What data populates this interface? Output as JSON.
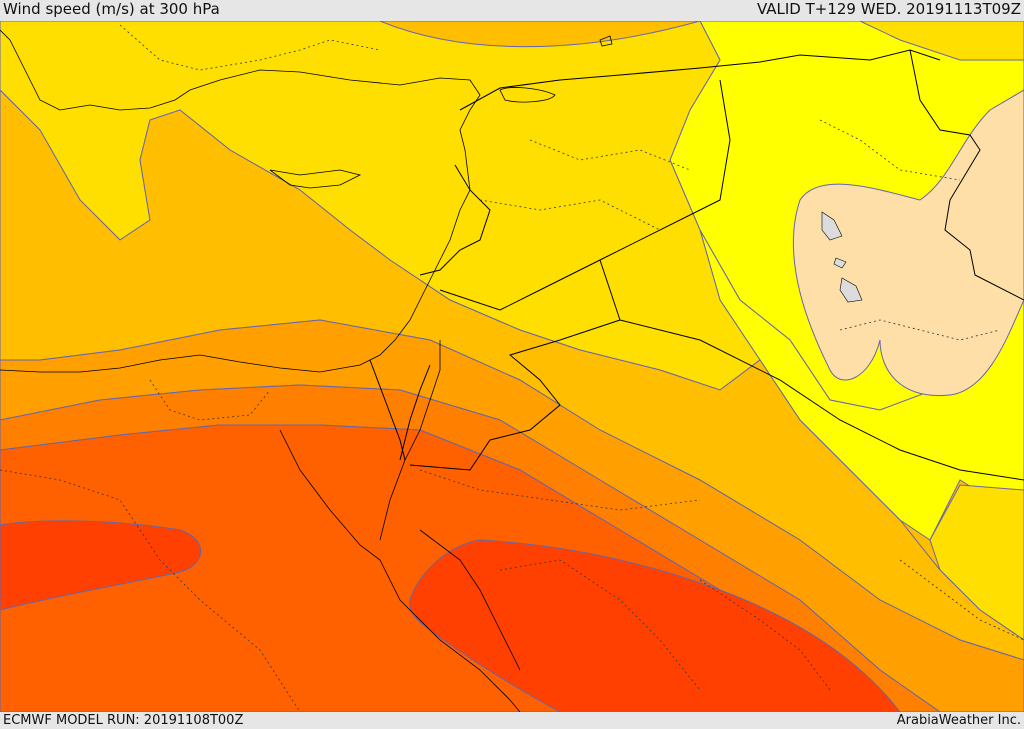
{
  "header": {
    "title": "Wind speed (m/s) at 300 hPa",
    "valid": "VALID T+129 WED. 20191113T09Z"
  },
  "footer": {
    "model_run": "ECMWF MODEL RUN: 20191108T00Z",
    "credit": "ArabiaWeather Inc."
  },
  "map": {
    "field": "wind-speed-300hPa",
    "colors": {
      "very_low": "#ffdfa8",
      "low": "#ffff00",
      "mid_low": "#ffdf00",
      "mid": "#ffbf00",
      "mid_high": "#ff9f00",
      "high": "#ff7f00",
      "higher": "#ff6000",
      "highest": "#ff4000",
      "water": "#dcdcdc",
      "contour": "#6666aa",
      "border": "#000000"
    }
  }
}
